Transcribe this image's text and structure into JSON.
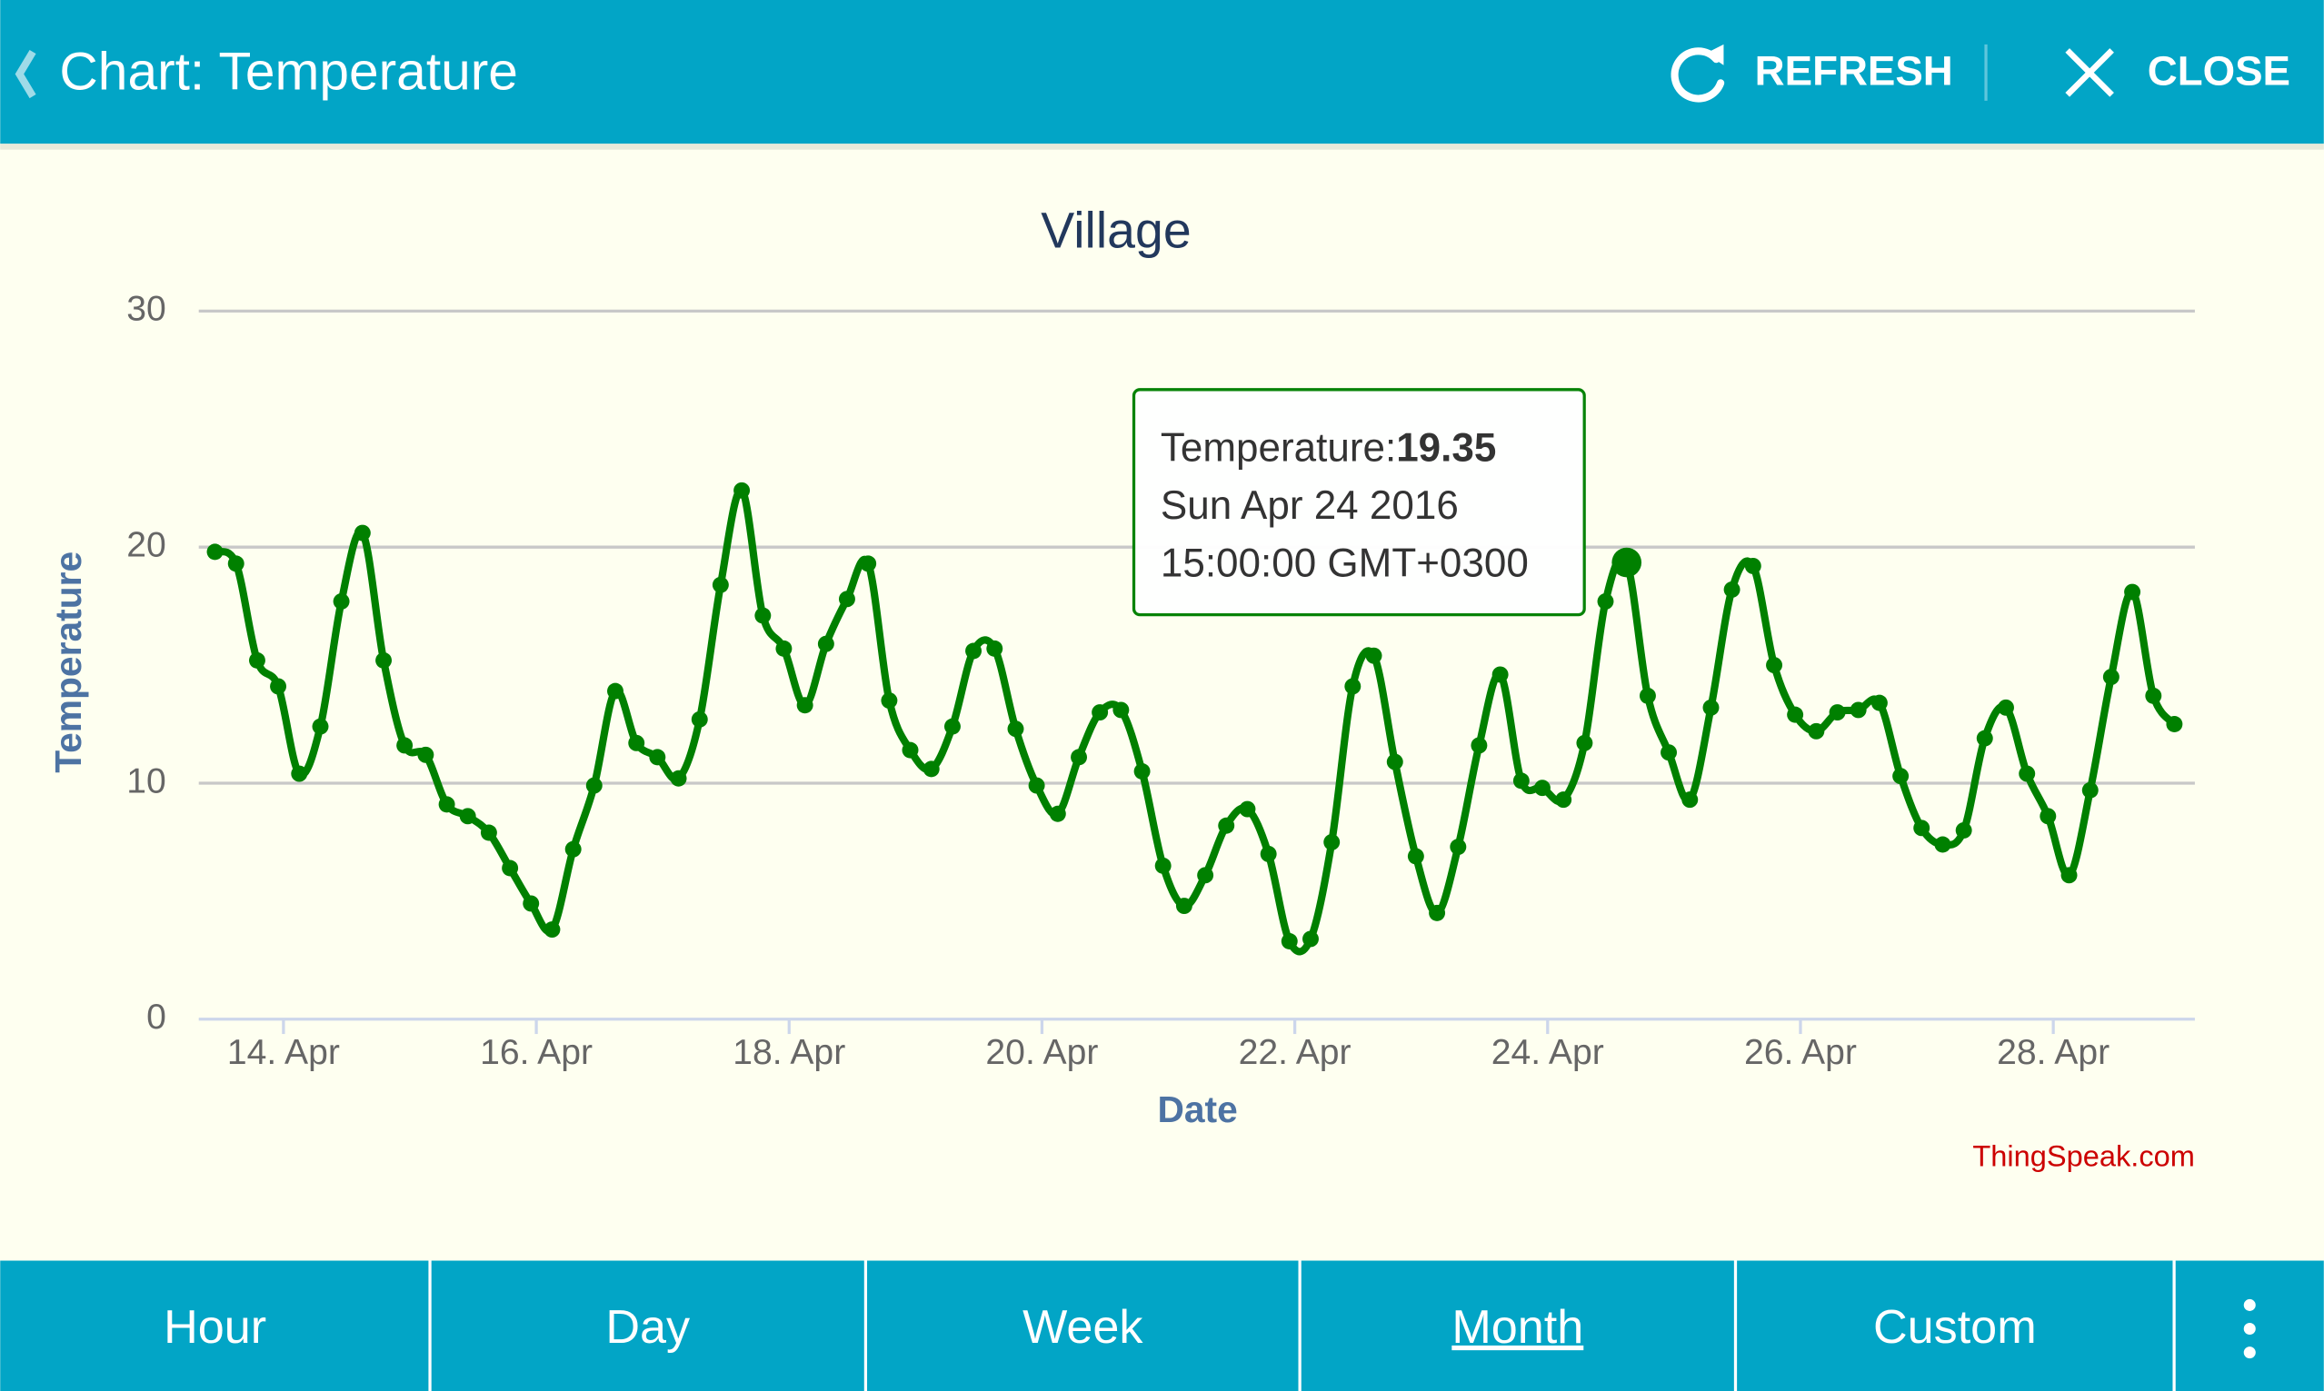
{
  "header": {
    "title": "Chart: Temperature",
    "refresh": "REFRESH",
    "close": "CLOSE"
  },
  "tabs": [
    "Hour",
    "Day",
    "Week",
    "Month",
    "Custom"
  ],
  "active_tab": 3,
  "chart_data": {
    "type": "line",
    "title": "Village",
    "x_label": "Date",
    "y_label": "Temperature",
    "credit": "ThingSpeak.com",
    "color": "#008000",
    "grid": true,
    "xlim": [
      13.33,
      29.12
    ],
    "xticks": [
      {
        "value": 14,
        "label": "14. Apr"
      },
      {
        "value": 16,
        "label": "16. Apr"
      },
      {
        "value": 18,
        "label": "18. Apr"
      },
      {
        "value": 20,
        "label": "20. Apr"
      },
      {
        "value": 22,
        "label": "22. Apr"
      },
      {
        "value": 24,
        "label": "24. Apr"
      },
      {
        "value": 26,
        "label": "26. Apr"
      },
      {
        "value": 28,
        "label": "28. Apr"
      }
    ],
    "ylim": [
      0,
      30
    ],
    "yticks": [
      0,
      10,
      20,
      30
    ],
    "x": [
      13.458,
      13.625,
      13.792,
      13.958,
      14.125,
      14.292,
      14.458,
      14.625,
      14.792,
      14.958,
      15.125,
      15.292,
      15.458,
      15.625,
      15.792,
      15.958,
      16.125,
      16.292,
      16.458,
      16.625,
      16.792,
      16.958,
      17.125,
      17.292,
      17.458,
      17.625,
      17.792,
      17.958,
      18.125,
      18.292,
      18.458,
      18.625,
      18.792,
      18.958,
      19.125,
      19.292,
      19.458,
      19.625,
      19.792,
      19.958,
      20.125,
      20.292,
      20.458,
      20.625,
      20.792,
      20.958,
      21.125,
      21.292,
      21.458,
      21.625,
      21.792,
      21.958,
      22.125,
      22.292,
      22.458,
      22.625,
      22.792,
      22.958,
      23.125,
      23.292,
      23.458,
      23.625,
      23.792,
      23.958,
      24.125,
      24.292,
      24.458,
      24.625,
      24.792,
      24.958,
      25.125,
      25.292,
      25.458,
      25.625,
      25.792,
      25.958,
      26.125,
      26.292,
      26.458,
      26.625,
      26.792,
      26.958,
      27.125,
      27.292,
      27.458,
      27.625,
      27.792,
      27.958,
      28.125,
      28.292,
      28.458,
      28.625,
      28.792,
      28.958
    ],
    "values": [
      19.8,
      19.3,
      15.2,
      14.1,
      10.4,
      12.4,
      17.7,
      20.6,
      15.2,
      11.6,
      11.2,
      9.1,
      8.6,
      7.9,
      6.4,
      4.9,
      3.8,
      7.2,
      9.9,
      13.9,
      11.7,
      11.1,
      10.2,
      12.7,
      18.4,
      22.4,
      17.1,
      15.7,
      13.3,
      15.9,
      17.8,
      19.3,
      13.5,
      11.4,
      10.6,
      12.4,
      15.6,
      15.7,
      12.3,
      9.9,
      8.7,
      11.1,
      13.0,
      13.1,
      10.5,
      6.5,
      4.8,
      6.1,
      8.2,
      8.9,
      7.0,
      3.3,
      3.4,
      7.5,
      14.1,
      15.4,
      10.9,
      6.9,
      4.5,
      7.3,
      11.6,
      14.6,
      10.1,
      9.8,
      9.3,
      11.7,
      17.7,
      19.35,
      13.7,
      11.3,
      9.3,
      13.2,
      18.2,
      19.2,
      15.0,
      12.9,
      12.2,
      13.0,
      13.1,
      13.4,
      10.3,
      8.1,
      7.4,
      8.0,
      11.9,
      13.2,
      10.4,
      8.6,
      6.1,
      9.7,
      14.5,
      18.1,
      13.7,
      12.5
    ],
    "tooltip": {
      "label": "Temperature:",
      "date": "Sun Apr 24 2016",
      "time": "15:00:00 GMT+0300",
      "highlight": 67
    }
  }
}
